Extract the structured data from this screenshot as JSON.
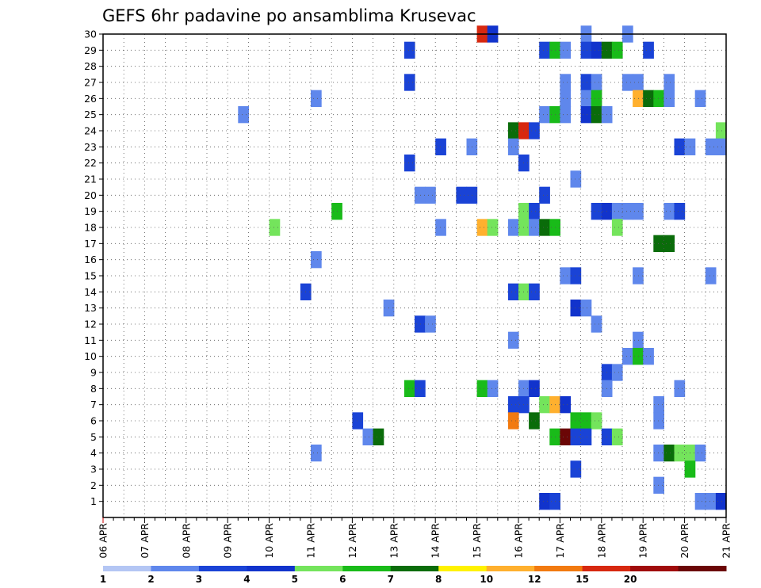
{
  "chart_data": {
    "type": "heatmap",
    "title": "GEFS 6hr padavine po ansamblima Krusevac",
    "xlabel": "",
    "ylabel": "",
    "x_tick_labels": [
      "06 APR",
      "07 APR",
      "08 APR",
      "09 APR",
      "10 APR",
      "11 APR",
      "12 APR",
      "13 APR",
      "14 APR",
      "15 APR",
      "16 APR",
      "17 APR",
      "18 APR",
      "19 APR",
      "20 APR",
      "21 APR"
    ],
    "x_steps_per_day": 4,
    "x_range_steps": [
      0,
      60
    ],
    "y_tick_labels": [
      "1",
      "2",
      "3",
      "4",
      "5",
      "6",
      "7",
      "8",
      "9",
      "10",
      "11",
      "12",
      "13",
      "14",
      "15",
      "16",
      "17",
      "18",
      "19",
      "20",
      "21",
      "22",
      "23",
      "24",
      "25",
      "26",
      "27",
      "28",
      "29",
      "30"
    ],
    "y_range": [
      0,
      30
    ],
    "grid": true,
    "colorbar": {
      "labels": [
        "1",
        "2",
        "3",
        "4",
        "5",
        "6",
        "7",
        "8",
        "10",
        "12",
        "15",
        "20"
      ],
      "colors": [
        "#b4c6f4",
        "#5f87ec",
        "#1a43d6",
        "#1133cc",
        "#74e45c",
        "#19bb19",
        "#0a6c0a",
        "#fff200",
        "#ffb02e",
        "#f27a0f",
        "#d7280f",
        "#a00b0b",
        "#6b0606"
      ]
    },
    "cells": [
      {
        "m": 30,
        "t": [
          [
            36,
            10
          ],
          [
            37,
            3
          ],
          [
            46,
            1
          ],
          [
            50,
            1
          ]
        ]
      },
      {
        "m": 29,
        "t": [
          [
            29,
            2
          ],
          [
            42,
            2
          ],
          [
            43,
            5
          ],
          [
            44,
            1
          ],
          [
            46,
            2
          ],
          [
            47,
            3
          ],
          [
            48,
            6
          ],
          [
            49,
            5
          ],
          [
            52,
            2
          ]
        ]
      },
      {
        "m": 27,
        "t": [
          [
            29,
            2
          ],
          [
            44,
            1
          ],
          [
            46,
            2
          ],
          [
            47,
            1
          ],
          [
            50,
            1
          ],
          [
            51,
            1
          ],
          [
            54,
            1
          ]
        ]
      },
      {
        "m": 26,
        "t": [
          [
            20,
            1
          ],
          [
            44,
            1
          ],
          [
            46,
            1
          ],
          [
            47,
            5
          ],
          [
            51,
            8
          ],
          [
            52,
            6
          ],
          [
            53,
            5
          ],
          [
            54,
            1
          ],
          [
            57,
            1
          ]
        ]
      },
      {
        "m": 25,
        "t": [
          [
            13,
            1
          ],
          [
            42,
            1
          ],
          [
            43,
            5
          ],
          [
            44,
            1
          ],
          [
            46,
            3
          ],
          [
            47,
            6
          ],
          [
            48,
            1
          ]
        ]
      },
      {
        "m": 24,
        "t": [
          [
            39,
            6
          ],
          [
            40,
            10
          ],
          [
            41,
            2
          ],
          [
            59,
            4
          ]
        ]
      },
      {
        "m": 23,
        "t": [
          [
            32,
            2
          ],
          [
            35,
            1
          ],
          [
            39,
            1
          ],
          [
            55,
            2
          ],
          [
            56,
            1
          ],
          [
            58,
            1
          ],
          [
            59,
            1
          ]
        ]
      },
      {
        "m": 22,
        "t": [
          [
            29,
            2
          ],
          [
            40,
            2
          ]
        ]
      },
      {
        "m": 21,
        "t": [
          [
            45,
            1
          ]
        ]
      },
      {
        "m": 20,
        "t": [
          [
            30,
            1
          ],
          [
            31,
            1
          ],
          [
            34,
            2
          ],
          [
            35,
            2
          ],
          [
            42,
            2
          ]
        ]
      },
      {
        "m": 19,
        "t": [
          [
            22,
            5
          ],
          [
            40,
            4
          ],
          [
            41,
            2
          ],
          [
            47,
            2
          ],
          [
            48,
            3
          ],
          [
            49,
            1
          ],
          [
            50,
            1
          ],
          [
            51,
            1
          ],
          [
            54,
            1
          ],
          [
            55,
            2
          ]
        ]
      },
      {
        "m": 18,
        "t": [
          [
            16,
            4
          ],
          [
            32,
            1
          ],
          [
            36,
            8
          ],
          [
            37,
            4
          ],
          [
            39,
            1
          ],
          [
            40,
            4
          ],
          [
            41,
            1
          ],
          [
            42,
            6
          ],
          [
            43,
            5
          ],
          [
            49,
            4
          ]
        ]
      },
      {
        "m": 17,
        "t": [
          [
            53,
            6
          ],
          [
            54,
            6
          ]
        ]
      },
      {
        "m": 16,
        "t": [
          [
            20,
            1
          ]
        ]
      },
      {
        "m": 15,
        "t": [
          [
            44,
            1
          ],
          [
            45,
            2
          ],
          [
            51,
            1
          ],
          [
            58,
            1
          ]
        ]
      },
      {
        "m": 14,
        "t": [
          [
            19,
            2
          ],
          [
            39,
            2
          ],
          [
            40,
            4
          ],
          [
            41,
            2
          ]
        ]
      },
      {
        "m": 13,
        "t": [
          [
            27,
            1
          ],
          [
            45,
            3
          ],
          [
            46,
            1
          ]
        ]
      },
      {
        "m": 12,
        "t": [
          [
            30,
            2
          ],
          [
            31,
            1
          ],
          [
            47,
            1
          ]
        ]
      },
      {
        "m": 11,
        "t": [
          [
            39,
            1
          ],
          [
            51,
            1
          ]
        ]
      },
      {
        "m": 10,
        "t": [
          [
            50,
            1
          ],
          [
            51,
            5
          ],
          [
            52,
            1
          ]
        ]
      },
      {
        "m": 9,
        "t": [
          [
            48,
            2
          ],
          [
            49,
            1
          ]
        ]
      },
      {
        "m": 8,
        "t": [
          [
            29,
            5
          ],
          [
            30,
            2
          ],
          [
            36,
            5
          ],
          [
            37,
            1
          ],
          [
            40,
            1
          ],
          [
            41,
            3
          ],
          [
            48,
            1
          ],
          [
            55,
            1
          ]
        ]
      },
      {
        "m": 7,
        "t": [
          [
            39,
            2
          ],
          [
            40,
            2
          ],
          [
            42,
            4
          ],
          [
            43,
            8
          ],
          [
            44,
            3
          ],
          [
            53,
            1
          ]
        ]
      },
      {
        "m": 6,
        "t": [
          [
            24,
            2
          ],
          [
            39,
            9
          ],
          [
            41,
            6
          ],
          [
            45,
            5
          ],
          [
            46,
            5
          ],
          [
            47,
            4
          ],
          [
            53,
            1
          ]
        ]
      },
      {
        "m": 5,
        "t": [
          [
            25,
            1
          ],
          [
            26,
            6
          ],
          [
            43,
            5
          ],
          [
            44,
            12
          ],
          [
            45,
            2
          ],
          [
            46,
            2
          ],
          [
            48,
            2
          ],
          [
            49,
            4
          ]
        ]
      },
      {
        "m": 4,
        "t": [
          [
            20,
            1
          ],
          [
            53,
            1
          ],
          [
            54,
            6
          ],
          [
            55,
            4
          ],
          [
            56,
            4
          ],
          [
            57,
            1
          ]
        ]
      },
      {
        "m": 3,
        "t": [
          [
            45,
            2
          ],
          [
            56,
            5
          ]
        ]
      },
      {
        "m": 2,
        "t": [
          [
            53,
            1
          ]
        ]
      },
      {
        "m": 1,
        "t": [
          [
            42,
            3
          ],
          [
            43,
            2
          ],
          [
            57,
            1
          ],
          [
            58,
            1
          ],
          [
            59,
            3
          ]
        ]
      }
    ]
  }
}
